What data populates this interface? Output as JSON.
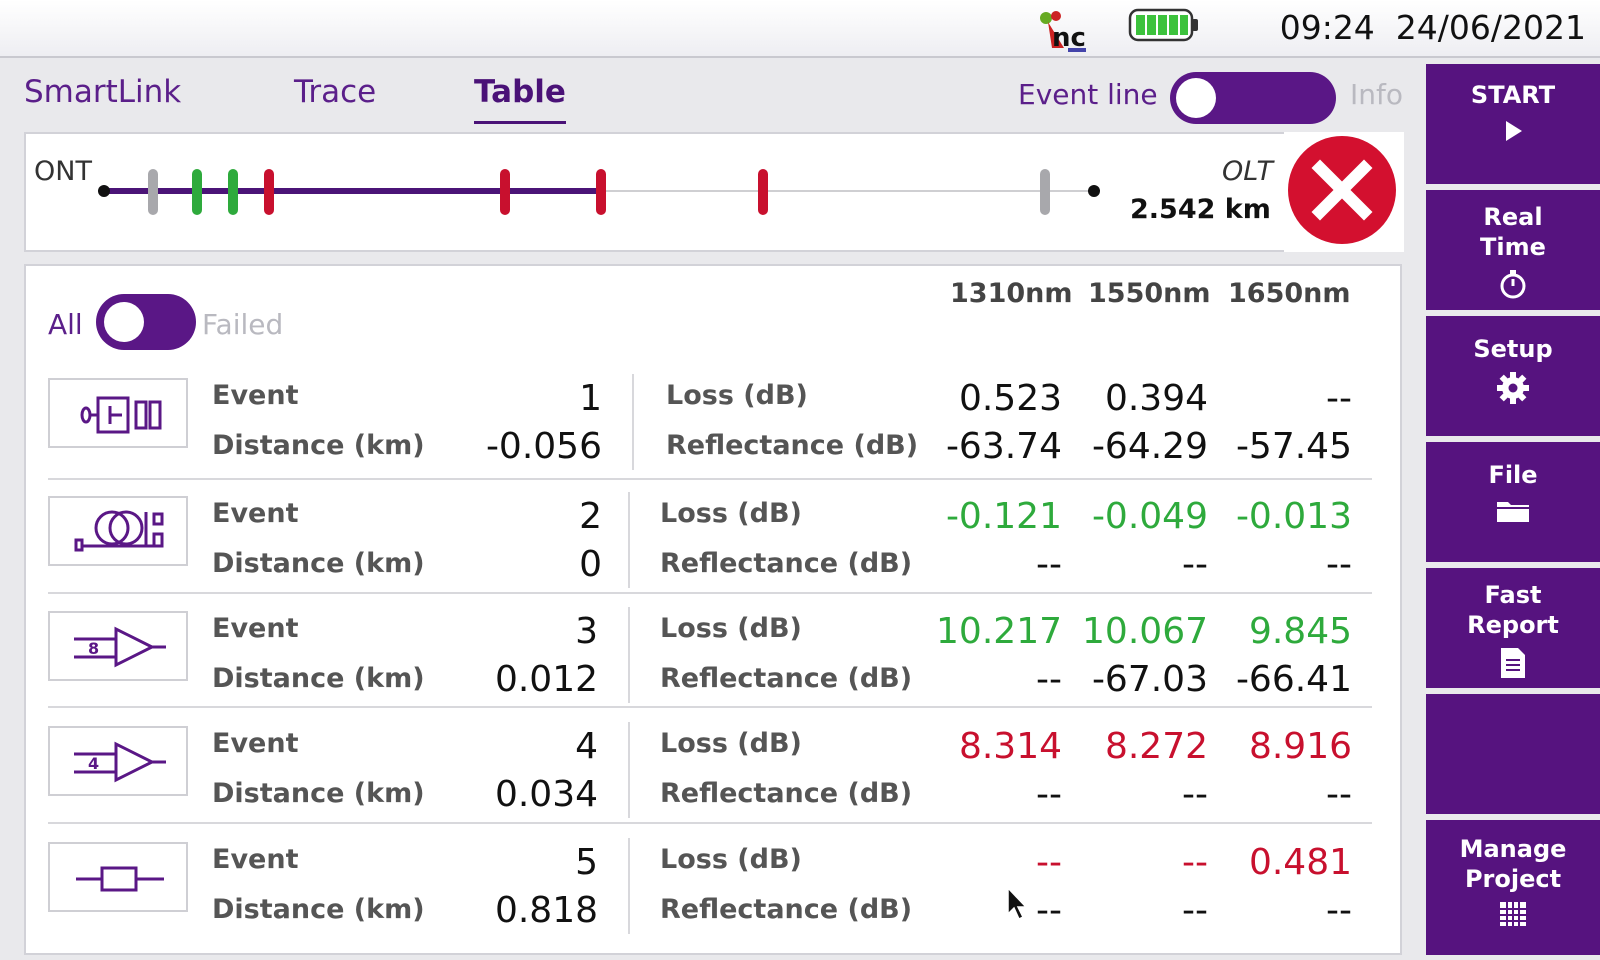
{
  "status": {
    "time": "09:24",
    "date": "24/06/2021",
    "battery_icon": "battery-full-icon",
    "logo_icon": "nc-logo-icon"
  },
  "tabs": [
    {
      "label": "SmartLink",
      "active": false
    },
    {
      "label": "Trace",
      "active": false
    },
    {
      "label": "Table",
      "active": true
    }
  ],
  "event_line": {
    "label": "Event line",
    "info_label": "Info",
    "on": true
  },
  "link_map": {
    "start_label": "ONT",
    "end_label": "OLT",
    "total_distance": "2.542 km",
    "status": "fail",
    "colors": {
      "fiber": "#4b1477",
      "pass": "#2eaa3c",
      "fail": "#c8102e",
      "neutral": "#a8a8ac"
    }
  },
  "filter": {
    "all_label": "All",
    "failed_label": "Failed"
  },
  "wavelengths": [
    "1310nm",
    "1550nm",
    "1650nm"
  ],
  "labels": {
    "event": "Event",
    "distance": "Distance (km)",
    "loss": "Loss  (dB)",
    "reflectance": "Reflectance (dB)"
  },
  "events": [
    {
      "icon": "connector-icon",
      "number": "1",
      "distance": "-0.056",
      "loss": [
        {
          "v": "0.523",
          "c": "black"
        },
        {
          "v": "0.394",
          "c": "black"
        },
        {
          "v": "--",
          "c": "black"
        }
      ],
      "reflectance": [
        {
          "v": "-63.74",
          "c": "black"
        },
        {
          "v": "-64.29",
          "c": "black"
        },
        {
          "v": "-57.45",
          "c": "black"
        }
      ]
    },
    {
      "icon": "splice-spool-icon",
      "number": "2",
      "distance": "0",
      "loss": [
        {
          "v": "-0.121",
          "c": "green"
        },
        {
          "v": "-0.049",
          "c": "green"
        },
        {
          "v": "-0.013",
          "c": "green"
        }
      ],
      "reflectance": [
        {
          "v": "--",
          "c": "black"
        },
        {
          "v": "--",
          "c": "black"
        },
        {
          "v": "--",
          "c": "black"
        }
      ]
    },
    {
      "icon": "splitter-1x8-icon",
      "badge": "8",
      "number": "3",
      "distance": "0.012",
      "loss": [
        {
          "v": "10.217",
          "c": "green"
        },
        {
          "v": "10.067",
          "c": "green"
        },
        {
          "v": "9.845",
          "c": "green"
        }
      ],
      "reflectance": [
        {
          "v": "--",
          "c": "black"
        },
        {
          "v": "-67.03",
          "c": "black"
        },
        {
          "v": "-66.41",
          "c": "black"
        }
      ]
    },
    {
      "icon": "splitter-1x4-icon",
      "badge": "4",
      "number": "4",
      "distance": "0.034",
      "loss": [
        {
          "v": "8.314",
          "c": "red"
        },
        {
          "v": "8.272",
          "c": "red"
        },
        {
          "v": "8.916",
          "c": "red"
        }
      ],
      "reflectance": [
        {
          "v": "--",
          "c": "black"
        },
        {
          "v": "--",
          "c": "black"
        },
        {
          "v": "--",
          "c": "black"
        }
      ]
    },
    {
      "icon": "splice-icon",
      "number": "5",
      "distance": "0.818",
      "loss": [
        {
          "v": "--",
          "c": "red"
        },
        {
          "v": "--",
          "c": "red"
        },
        {
          "v": "0.481",
          "c": "red"
        }
      ],
      "reflectance": [
        {
          "v": "--",
          "c": "black"
        },
        {
          "v": "--",
          "c": "black"
        },
        {
          "v": "--",
          "c": "black"
        }
      ]
    }
  ],
  "sidebar": [
    {
      "label": "START",
      "icon": "play-icon"
    },
    {
      "label": "Real\nTime",
      "icon": "stopwatch-icon"
    },
    {
      "label": "Setup",
      "icon": "gear-icon"
    },
    {
      "label": "File",
      "icon": "folder-icon"
    },
    {
      "label": "Fast\nReport",
      "icon": "report-icon"
    },
    {
      "label": "",
      "icon": ""
    },
    {
      "label": "Manage\nProject",
      "icon": "grid-icon"
    }
  ]
}
